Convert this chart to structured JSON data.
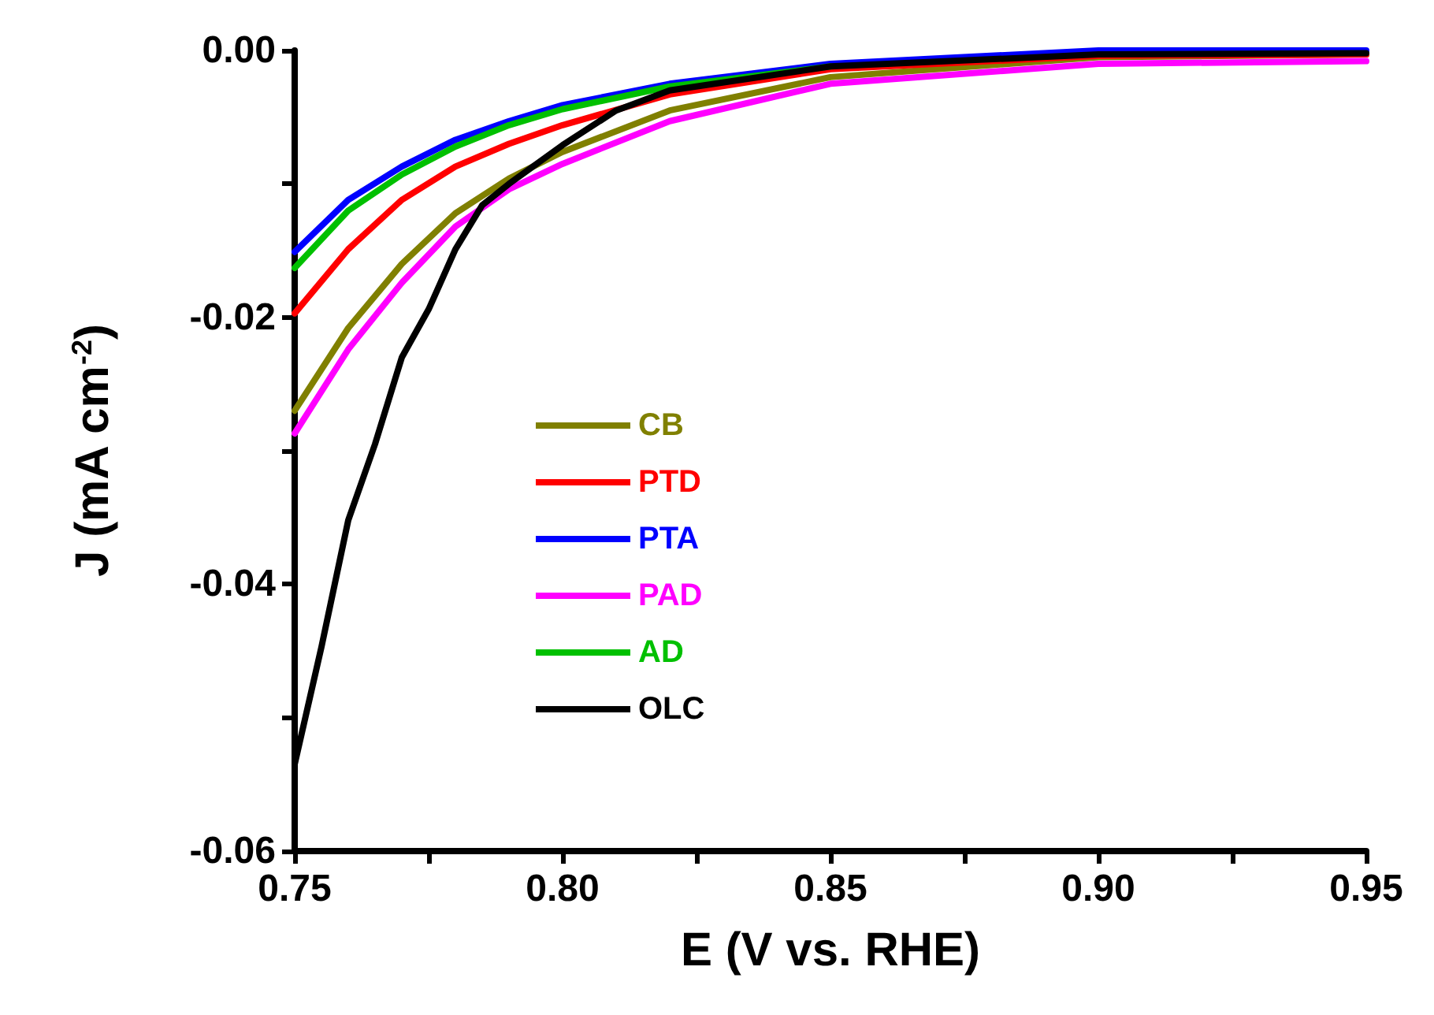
{
  "chart_data": {
    "type": "line",
    "xlabel": "E (V vs. RHE)",
    "ylabel": "J (mA cm$^{-2}$)",
    "x": [
      0.75,
      0.76,
      0.77,
      0.78,
      0.79,
      0.8,
      0.82,
      0.85,
      0.9,
      0.95
    ],
    "series": [
      {
        "name": "CB",
        "color": "#808000",
        "values": [
          -0.027,
          -0.0208,
          -0.016,
          -0.0122,
          -0.0096,
          -0.0076,
          -0.0045,
          -0.002,
          -0.0005,
          -0.0003
        ]
      },
      {
        "name": "PTD",
        "color": "#ff0000",
        "values": [
          -0.0197,
          -0.0149,
          -0.0112,
          -0.0087,
          -0.007,
          -0.0056,
          -0.0033,
          -0.0014,
          -0.0004,
          -0.0003
        ]
      },
      {
        "name": "PTA",
        "color": "#0000ff",
        "values": [
          -0.0151,
          -0.0112,
          -0.0087,
          -0.0067,
          -0.0053,
          -0.0041,
          -0.0025,
          -0.001,
          0,
          0
        ]
      },
      {
        "name": "PAD",
        "color": "#ff00ff",
        "values": [
          -0.0287,
          -0.0224,
          -0.0174,
          -0.0132,
          -0.0104,
          -0.0085,
          -0.0053,
          -0.0025,
          -0.001,
          -0.0008
        ]
      },
      {
        "name": "AD",
        "color": "#00c000",
        "values": [
          -0.0163,
          -0.012,
          -0.0093,
          -0.0072,
          -0.0056,
          -0.0044,
          -0.0027,
          -0.0012,
          null,
          null
        ]
      },
      {
        "name": "OLC",
        "color": "#000000",
        "x": [
          0.75,
          0.755,
          0.76,
          0.765,
          0.77,
          0.775,
          0.78,
          0.785,
          0.79,
          0.8,
          0.81,
          0.82,
          0.85,
          0.9,
          0.95
        ],
        "values": [
          -0.0535,
          -0.0447,
          -0.0352,
          -0.0295,
          -0.023,
          -0.0194,
          -0.0149,
          -0.0116,
          -0.01,
          -0.0071,
          -0.0045,
          -0.003,
          -0.0012,
          -0.0003,
          -0.0002
        ]
      }
    ],
    "xlim": [
      0.75,
      0.95
    ],
    "xticks": [
      {
        "value": 0.75,
        "label": "0.75"
      },
      {
        "value": 0.775,
        "label": null
      },
      {
        "value": 0.8,
        "label": "0.80"
      },
      {
        "value": 0.825,
        "label": null
      },
      {
        "value": 0.85,
        "label": "0.85"
      },
      {
        "value": 0.875,
        "label": null
      },
      {
        "value": 0.9,
        "label": "0.90"
      },
      {
        "value": 0.925,
        "label": null
      },
      {
        "value": 0.95,
        "label": "0.95"
      }
    ],
    "ylim": [
      -0.06,
      0
    ],
    "yticks": [
      {
        "value": -0.06,
        "label": "-0.06"
      },
      {
        "value": -0.05,
        "label": null
      },
      {
        "value": -0.04,
        "label": "-0.04"
      },
      {
        "value": -0.03,
        "label": null
      },
      {
        "value": -0.02,
        "label": "-0.02"
      },
      {
        "value": -0.01,
        "label": null
      },
      {
        "value": 0,
        "label": "0.00"
      }
    ],
    "grid": false,
    "legend": "center",
    "marker": "none",
    "line_style": "solid"
  }
}
